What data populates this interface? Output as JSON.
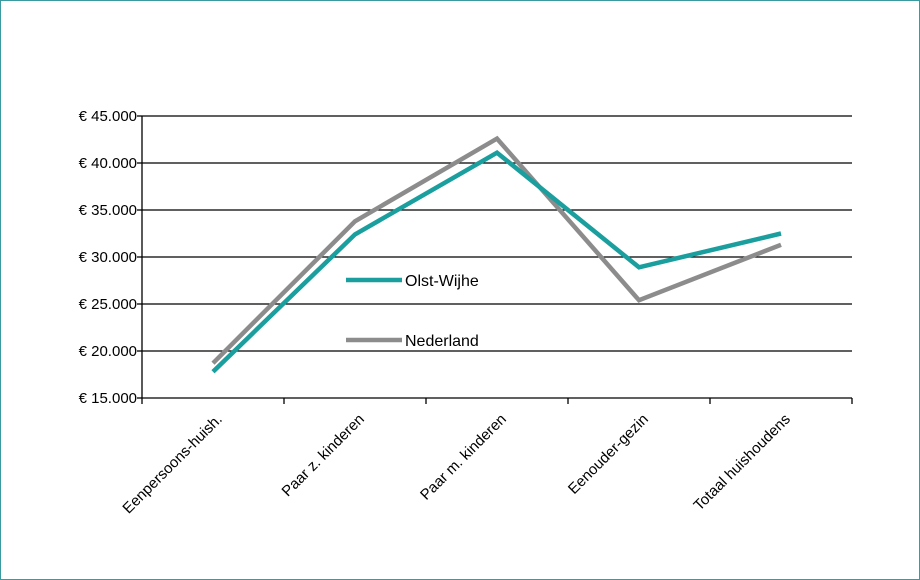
{
  "chart_data": {
    "type": "line",
    "categories": [
      "Eenpersoons-huish.",
      "Paar z. kinderen",
      "Paar m. kinderen",
      "Eenouder-gezin",
      "Totaal huishoudens"
    ],
    "y_ticks": [
      "€ 15.000",
      "€ 20.000",
      "€ 25.000",
      "€ 30.000",
      "€ 35.000",
      "€ 40.000",
      "€ 45.000"
    ],
    "ylim": [
      15000,
      45000
    ],
    "grid": true,
    "legend_position": "center-left inside plot",
    "series": [
      {
        "name": "Olst-Wijhe",
        "color": "#1a9e9e",
        "values": [
          17800,
          32400,
          41100,
          28900,
          32500
        ]
      },
      {
        "name": "Nederland",
        "color": "#8c8c8c",
        "values": [
          18700,
          33800,
          42600,
          25400,
          31300
        ]
      }
    ]
  }
}
